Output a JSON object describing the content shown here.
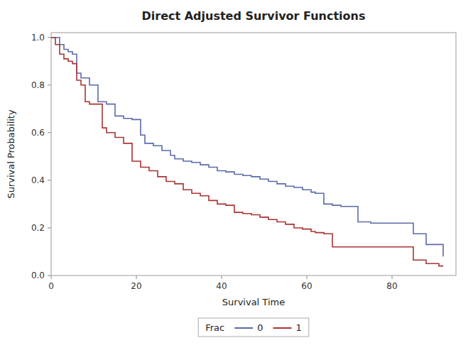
{
  "chart_data": {
    "type": "step",
    "title": "Direct Adjusted Survivor Functions",
    "xlabel": "Survival Time",
    "ylabel": "Survival Probability",
    "xlim": [
      0,
      95
    ],
    "ylim": [
      0.0,
      1.02
    ],
    "xticks": [
      0,
      20,
      40,
      60,
      80
    ],
    "yticks": [
      {
        "value": 0.0,
        "label": "0.0"
      },
      0.2,
      0.4,
      0.6,
      0.8,
      {
        "value": 1.0,
        "label": "1.0"
      }
    ],
    "grid": false,
    "legend": "bottom",
    "legend_title": "Frac",
    "series": [
      {
        "name": "0",
        "color": "#5b6baa",
        "x": [
          0,
          1,
          2,
          3,
          4,
          5,
          6,
          7,
          9,
          10,
          11,
          13,
          15,
          17,
          19,
          21,
          22,
          24,
          26,
          28,
          29,
          31,
          33,
          35,
          37,
          39,
          41,
          43,
          45,
          47,
          49,
          51,
          53,
          55,
          57,
          59,
          61,
          62,
          64,
          66,
          68,
          72,
          75,
          78,
          80,
          85,
          88,
          91,
          92
        ],
        "values": [
          1.0,
          1.0,
          0.97,
          0.95,
          0.94,
          0.93,
          0.85,
          0.83,
          0.8,
          0.8,
          0.73,
          0.72,
          0.67,
          0.66,
          0.655,
          0.59,
          0.555,
          0.545,
          0.525,
          0.505,
          0.49,
          0.48,
          0.475,
          0.465,
          0.455,
          0.44,
          0.435,
          0.425,
          0.42,
          0.415,
          0.405,
          0.395,
          0.385,
          0.375,
          0.37,
          0.36,
          0.35,
          0.345,
          0.3,
          0.295,
          0.29,
          0.225,
          0.22,
          0.22,
          0.22,
          0.175,
          0.13,
          0.13,
          0.08
        ]
      },
      {
        "name": "1",
        "color": "#aa3333",
        "x": [
          0,
          1,
          2,
          3,
          4,
          5,
          6,
          7,
          8,
          9,
          10,
          12,
          13,
          15,
          17,
          19,
          21,
          23,
          25,
          27,
          29,
          31,
          33,
          35,
          37,
          39,
          41,
          43,
          45,
          47,
          49,
          51,
          53,
          55,
          57,
          59,
          61,
          62,
          64,
          66,
          70,
          75,
          80,
          85,
          88,
          91,
          92
        ],
        "values": [
          1.0,
          0.97,
          0.93,
          0.91,
          0.9,
          0.89,
          0.82,
          0.8,
          0.73,
          0.72,
          0.72,
          0.62,
          0.6,
          0.58,
          0.555,
          0.48,
          0.455,
          0.44,
          0.415,
          0.395,
          0.385,
          0.36,
          0.345,
          0.335,
          0.315,
          0.3,
          0.295,
          0.265,
          0.26,
          0.255,
          0.245,
          0.235,
          0.225,
          0.215,
          0.2,
          0.195,
          0.185,
          0.18,
          0.175,
          0.12,
          0.12,
          0.12,
          0.12,
          0.065,
          0.05,
          0.04,
          0.04
        ]
      }
    ]
  }
}
